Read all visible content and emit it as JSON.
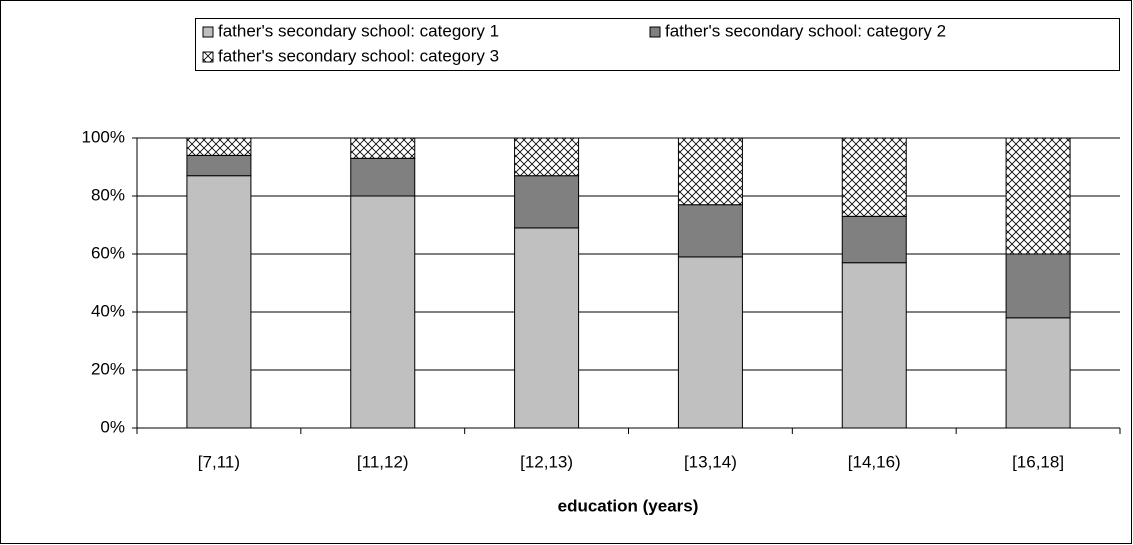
{
  "chart_data": {
    "type": "stacked_bar_percent",
    "x_label": "education (years)",
    "categories": [
      "[7,11)",
      "[11,12)",
      "[12,13)",
      "[13,14)",
      "[14,16)",
      "[16,18]"
    ],
    "series": [
      {
        "name": "father's secondary school: category 1",
        "color": "#c0c0c0",
        "values": [
          87,
          80,
          69,
          59,
          57,
          38
        ]
      },
      {
        "name": "father's secondary school: category 2",
        "color": "#808080",
        "values": [
          7,
          13,
          18,
          18,
          16,
          22
        ]
      },
      {
        "name": "father's secondary school: category 3",
        "color": "#ffffff",
        "pattern": "crosshatch",
        "values": [
          6,
          7,
          13,
          23,
          27,
          40
        ]
      }
    ],
    "ylim": [
      0,
      100
    ],
    "yticks": [
      {
        "value": 0,
        "label": "0%"
      },
      {
        "value": 20,
        "label": "20%"
      },
      {
        "value": 40,
        "label": "40%"
      },
      {
        "value": 60,
        "label": "60%"
      },
      {
        "value": 80,
        "label": "80%"
      },
      {
        "value": 100,
        "label": "100%"
      }
    ],
    "grid": true,
    "legend": "top"
  }
}
